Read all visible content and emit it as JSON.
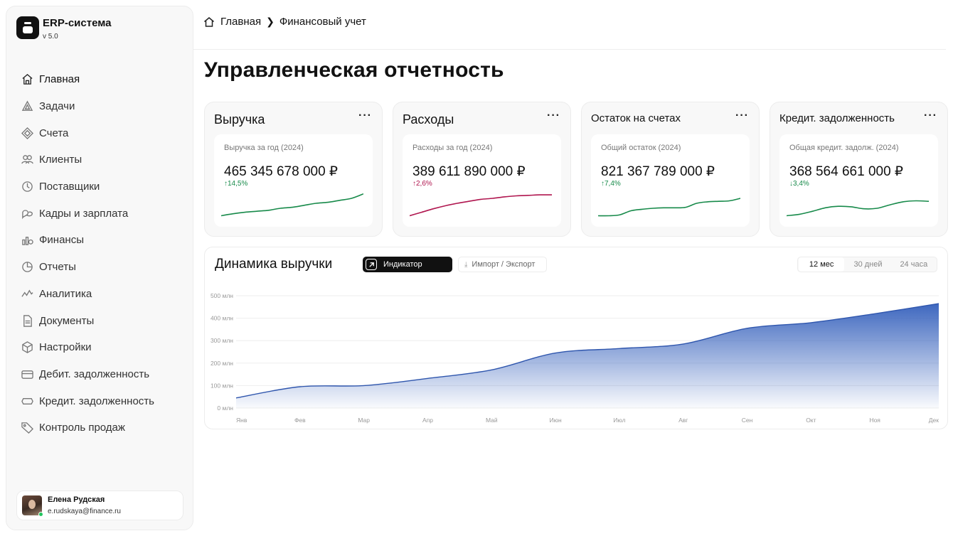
{
  "app": {
    "name": "ERP-система",
    "version": "v 5.0"
  },
  "sidebar": {
    "items": [
      {
        "label": "Главная",
        "icon": "home-icon",
        "active": true
      },
      {
        "label": "Задачи",
        "icon": "tasks-icon"
      },
      {
        "label": "Счета",
        "icon": "invoices-icon"
      },
      {
        "label": "Клиенты",
        "icon": "clients-icon"
      },
      {
        "label": "Поставщики",
        "icon": "suppliers-icon"
      },
      {
        "label": "Кадры и зарплата",
        "icon": "hr-icon"
      },
      {
        "label": "Финансы",
        "icon": "finance-icon"
      },
      {
        "label": "Отчеты",
        "icon": "reports-icon"
      },
      {
        "label": "Аналитика",
        "icon": "analytics-icon"
      },
      {
        "label": "Документы",
        "icon": "documents-icon"
      },
      {
        "label": "Настройки",
        "icon": "settings-icon"
      },
      {
        "label": "Дебит. задолженность",
        "icon": "card-icon"
      },
      {
        "label": "Кредит. задолженность",
        "icon": "credit-icon"
      },
      {
        "label": "Контроль продаж",
        "icon": "tag-icon"
      }
    ]
  },
  "user": {
    "name": "Елена Рудская",
    "email": "e.rudskaya@finance.ru",
    "status_color": "#22c55e"
  },
  "breadcrumb": {
    "home": "Главная",
    "current": "Финансовый учет"
  },
  "page": {
    "title": "Управленческая отчетность"
  },
  "kpis": [
    {
      "title": "Выручка",
      "subtitle": "Выручка за год (2024)",
      "value": "465 345 678 000 ₽",
      "change": "↑14,5%",
      "color": "#178a4a",
      "trend": [
        5,
        9,
        12,
        14,
        16,
        20,
        22,
        26,
        30,
        32,
        36,
        40,
        49
      ]
    },
    {
      "title": "Расходы",
      "subtitle": "Расходы за год (2024)",
      "value": "389 611 890 000 ₽",
      "change": "↑2,6%",
      "color": "#b0164f",
      "trend": [
        5,
        12,
        19,
        25,
        30,
        34,
        38,
        40,
        43,
        45,
        46,
        47,
        47
      ]
    },
    {
      "title": "Остаток на счетах",
      "subtitle": "Общий остаток (2024)",
      "value": "821 367 789 000 ₽",
      "change": "↑7,4%",
      "color": "#178a4a",
      "trend": [
        5,
        5,
        7,
        15,
        18,
        20,
        21,
        21,
        22,
        30,
        33,
        34,
        35,
        40
      ]
    },
    {
      "title": "Кредит. задолженность",
      "subtitle": "Общая кредит. задолж. (2024)",
      "value": "368 564 661 000 ₽",
      "change": "↓3,4%",
      "color": "#178a4a",
      "trend": [
        5,
        8,
        14,
        21,
        24,
        23,
        19,
        20,
        27,
        33,
        35,
        34
      ]
    }
  ],
  "revenue": {
    "title": "Динамика выручки",
    "indicator_label": "Индикатор",
    "export_label": "Импорт / Экспорт",
    "periods": [
      "12 мес",
      "30 дней",
      "24 часа"
    ],
    "active_period": "12 мес"
  },
  "chart_data": {
    "type": "area",
    "title": "Динамика выручки",
    "categories": [
      "Янв",
      "Фев",
      "Мар",
      "Апр",
      "Май",
      "Июн",
      "Июл",
      "Авг",
      "Сен",
      "Окт",
      "Ноя",
      "Дек"
    ],
    "values": [
      45,
      95,
      100,
      132,
      170,
      245,
      265,
      285,
      355,
      380,
      420,
      465
    ],
    "y_ticks": [
      "0 млн",
      "100 млн",
      "200 млн",
      "300 млн",
      "400 млн",
      "500 млн"
    ],
    "ylim": [
      0,
      500
    ],
    "grid": true,
    "color": "#3e67bf"
  }
}
